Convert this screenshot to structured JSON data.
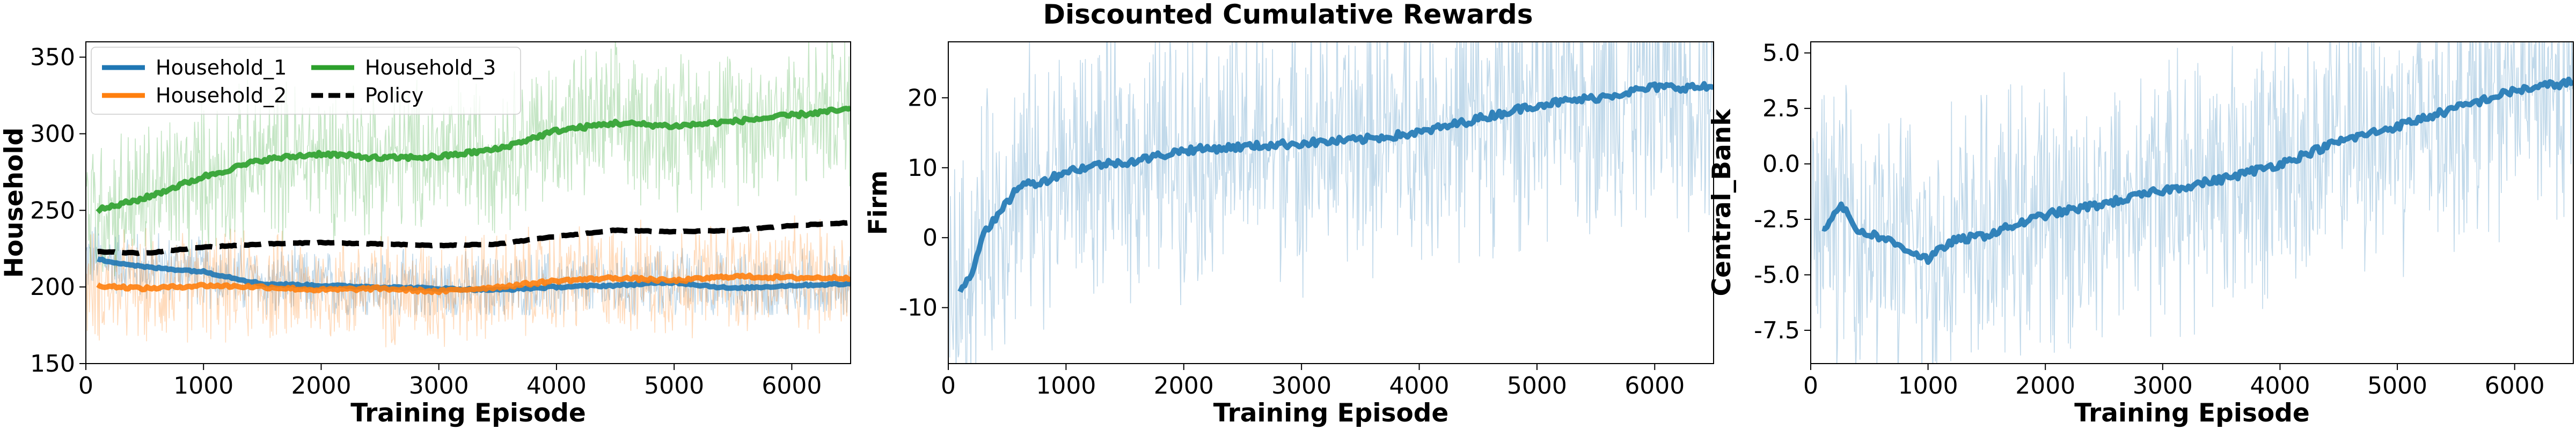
{
  "title": "Discounted Cumulative Rewards",
  "colors": {
    "household_1": "#1f77b4",
    "household_2": "#ff7f0e",
    "household_3": "#2ca02c",
    "policy": "#000000",
    "firm": "#1f77b4",
    "central_bank": "#1f77b4"
  },
  "chart_data": [
    {
      "type": "line",
      "xlabel": "Training Episode",
      "ylabel": "Household",
      "xlim": [
        0,
        6500
      ],
      "ylim": [
        150,
        360
      ],
      "xticks": [
        "0",
        "1000",
        "2000",
        "3000",
        "4000",
        "5000",
        "6000"
      ],
      "yticks": [
        "150",
        "200",
        "250",
        "300",
        "350"
      ],
      "legend": {
        "position": "top-left",
        "columns": 2
      },
      "series": [
        {
          "name": "Household_1",
          "color": "#1f77b4",
          "style": "solid",
          "x": [
            100,
            500,
            1000,
            1500,
            2000,
            2500,
            3000,
            3500,
            4000,
            4500,
            5000,
            5500,
            6000,
            6500
          ],
          "smoothed": [
            218,
            213,
            210,
            202,
            201,
            200,
            199,
            198,
            200,
            201,
            203,
            199,
            201,
            202
          ],
          "raw_band": [
            190,
            245
          ]
        },
        {
          "name": "Household_2",
          "color": "#ff7f0e",
          "style": "solid",
          "x": [
            100,
            500,
            1000,
            1500,
            2000,
            2500,
            3000,
            3500,
            4000,
            4500,
            5000,
            5500,
            6000,
            6500
          ],
          "smoothed": [
            201,
            199,
            201,
            200,
            198,
            199,
            197,
            200,
            204,
            206,
            204,
            207,
            206,
            206
          ],
          "raw_band": [
            160,
            245
          ]
        },
        {
          "name": "Household_3",
          "color": "#2ca02c",
          "style": "solid",
          "x": [
            100,
            500,
            1000,
            1500,
            2000,
            2500,
            3000,
            3500,
            4000,
            4500,
            5000,
            5500,
            6000,
            6500
          ],
          "smoothed": [
            250,
            258,
            272,
            283,
            287,
            284,
            285,
            290,
            302,
            307,
            305,
            308,
            312,
            316
          ],
          "raw_band": [
            225,
            345
          ]
        },
        {
          "name": "Policy",
          "color": "#000000",
          "style": "dashed",
          "x": [
            100,
            500,
            1000,
            1500,
            2000,
            2500,
            3000,
            3500,
            4000,
            4500,
            5000,
            5500,
            6000,
            6500
          ],
          "smoothed": [
            223,
            222,
            226,
            228,
            229,
            228,
            227,
            228,
            233,
            237,
            236,
            237,
            240,
            242
          ]
        }
      ]
    },
    {
      "type": "line",
      "xlabel": "Training Episode",
      "ylabel": "Firm",
      "xlim": [
        0,
        6500
      ],
      "ylim": [
        -18,
        28
      ],
      "xticks": [
        "0",
        "1000",
        "2000",
        "3000",
        "4000",
        "5000",
        "6000"
      ],
      "yticks": [
        "-10",
        "0",
        "10",
        "20"
      ],
      "series": [
        {
          "color": "#1f77b4",
          "style": "solid",
          "x": [
            100,
            200,
            300,
            400,
            500,
            600,
            800,
            1000,
            1300,
            1600,
            2000,
            2500,
            3000,
            3500,
            4000,
            4500,
            5000,
            5500,
            6000,
            6500
          ],
          "smoothed": [
            -7.5,
            -5,
            1,
            2.5,
            5,
            7.5,
            8,
            9.5,
            10.5,
            11,
            12.5,
            13,
            13.5,
            14,
            15,
            17,
            19,
            20,
            21.5,
            21.5
          ],
          "raw_band": [
            -17,
            28
          ]
        }
      ]
    },
    {
      "type": "line",
      "xlabel": "Training Episode",
      "ylabel": "Central_Bank",
      "xlim": [
        0,
        6500
      ],
      "ylim": [
        -9,
        5.5
      ],
      "xticks": [
        "0",
        "1000",
        "2000",
        "3000",
        "4000",
        "5000",
        "6000"
      ],
      "yticks": [
        "-7.5",
        "-5.0",
        "-2.5",
        "0.0",
        "2.5",
        "5.0"
      ],
      "series": [
        {
          "color": "#1f77b4",
          "style": "solid",
          "x": [
            100,
            250,
            400,
            600,
            800,
            1000,
            1200,
            1500,
            2000,
            2500,
            3000,
            3500,
            4000,
            4500,
            5000,
            5500,
            6000,
            6500
          ],
          "smoothed": [
            -3,
            -1.8,
            -3,
            -3.3,
            -3.8,
            -4.3,
            -3.5,
            -3.2,
            -2.3,
            -1.8,
            -1.2,
            -0.7,
            0.0,
            1.0,
            1.7,
            2.5,
            3.3,
            3.7
          ],
          "raw_band": [
            -9,
            5.5
          ]
        }
      ]
    }
  ]
}
